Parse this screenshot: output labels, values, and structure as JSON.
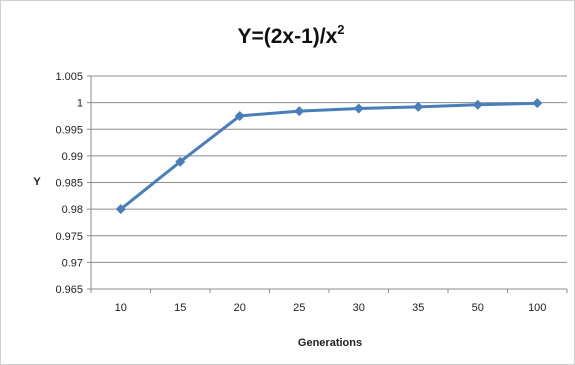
{
  "chart_data": {
    "type": "line",
    "title": "Y=(2x-1)/x",
    "title_superscript": "2",
    "xlabel": "Generations",
    "ylabel": "Y",
    "categories": [
      "10",
      "15",
      "20",
      "25",
      "30",
      "35",
      "50",
      "100"
    ],
    "series": [
      {
        "values": [
          0.98,
          0.9889,
          0.9975,
          0.9984,
          0.9989,
          0.9992,
          0.9996,
          0.9999
        ]
      }
    ],
    "ylim": [
      0.965,
      1.005
    ],
    "yticks": [
      "0.965",
      "0.97",
      "0.975",
      "0.98",
      "0.985",
      "0.99",
      "0.995",
      "1",
      "1.005"
    ],
    "grid": true,
    "legend": "none",
    "colors": {
      "series": "#4a7ebb",
      "grid": "#8c8c8c",
      "axis": "#8c8c8c"
    }
  }
}
